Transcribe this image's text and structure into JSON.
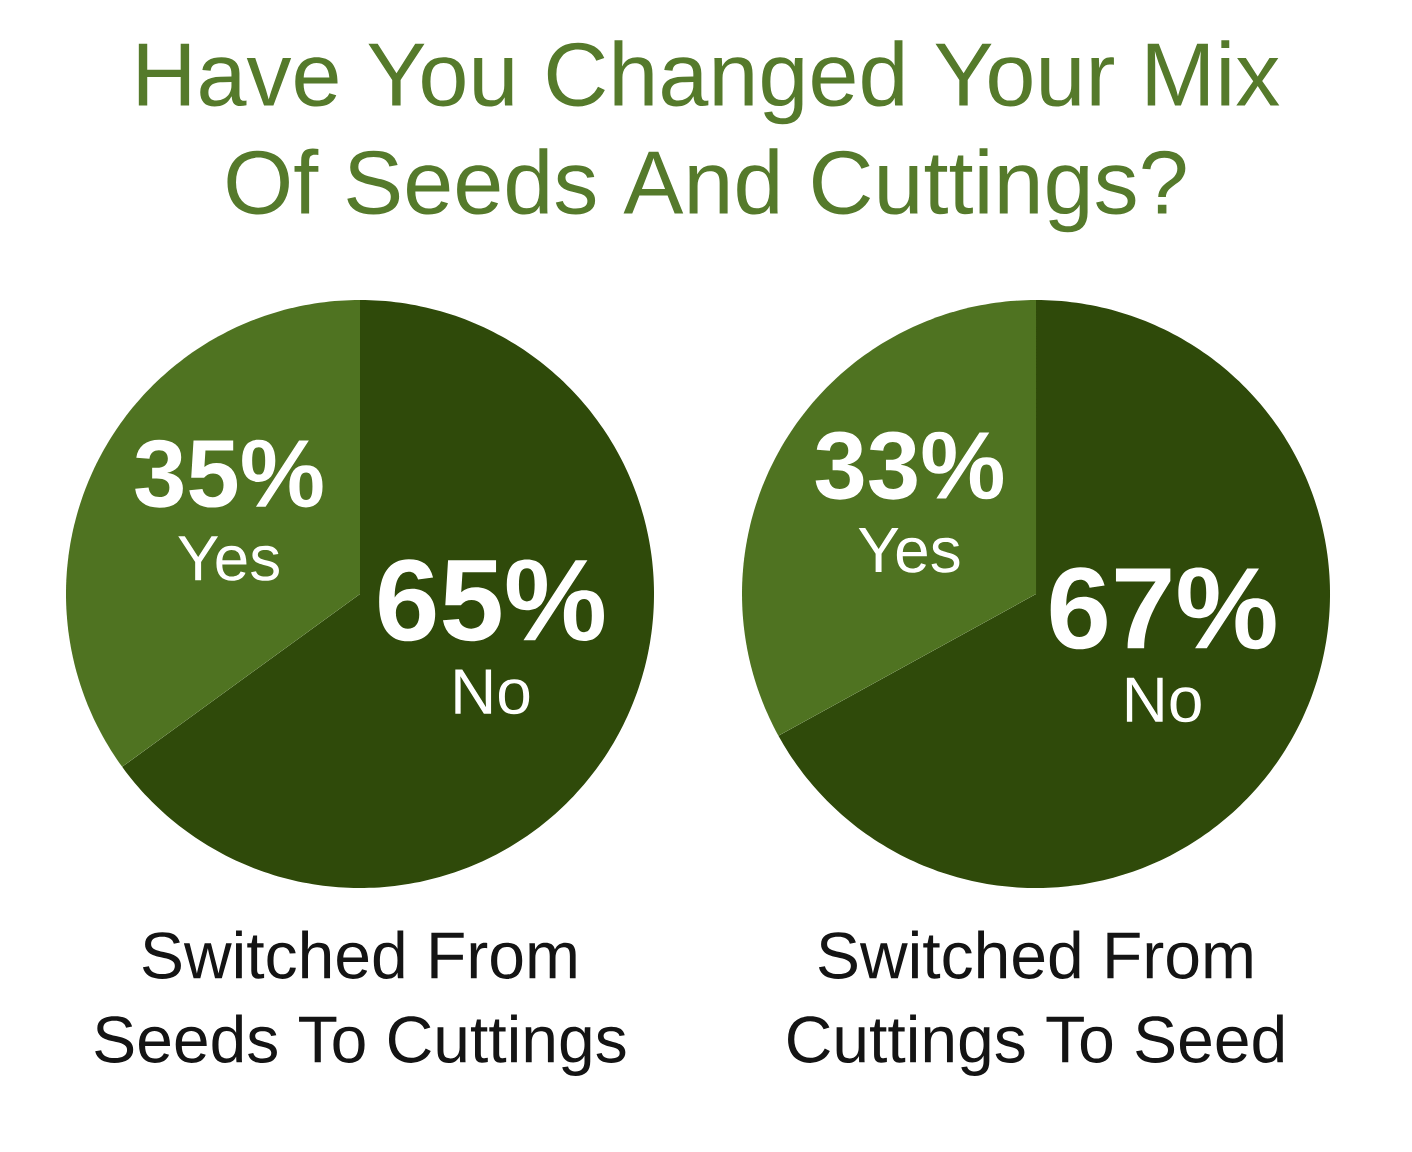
{
  "chart_data": [
    {
      "type": "pie",
      "title": "Have You Changed Your Mix Of Seeds And Cuttings?",
      "xlabel": "Switched From Seeds To Cuttings",
      "categories": [
        "No",
        "Yes"
      ],
      "values": [
        65,
        35
      ],
      "colors": [
        "#2f4a0a",
        "#4f7321"
      ],
      "value_labels": [
        "65%",
        "35%"
      ]
    },
    {
      "type": "pie",
      "xlabel": "Switched From Cuttings To Seed",
      "categories": [
        "No",
        "Yes"
      ],
      "values": [
        67,
        33
      ],
      "colors": [
        "#2f4a0a",
        "#4f7321"
      ],
      "value_labels": [
        "67%",
        "33%"
      ]
    }
  ]
}
